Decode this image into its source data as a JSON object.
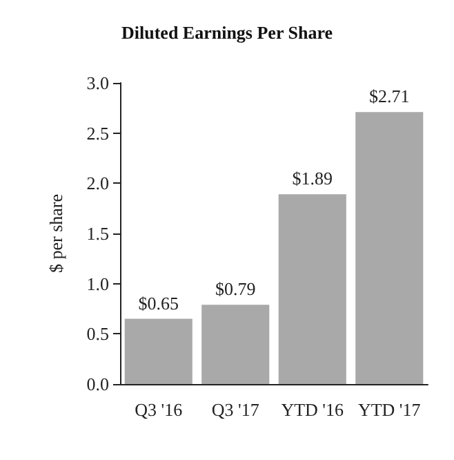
{
  "chart_data": {
    "type": "bar",
    "title": "Diluted Earnings Per Share",
    "ylabel": "$ per share",
    "categories": [
      "Q3 '16",
      "Q3 '17",
      "YTD '16",
      "YTD '17"
    ],
    "values": [
      0.65,
      0.79,
      1.89,
      2.71
    ],
    "value_labels": [
      "$0.65",
      "$0.79",
      "$1.89",
      "$2.71"
    ],
    "color": "#a9a9a9",
    "ylim": [
      0,
      3
    ],
    "yticks": [
      {
        "value": 0,
        "label": "0.0"
      },
      {
        "value": 0.5,
        "label": "0.5"
      },
      {
        "value": 1,
        "label": "1.0"
      },
      {
        "value": 1.5,
        "label": "1.5"
      },
      {
        "value": 2,
        "label": "2.0"
      },
      {
        "value": 2.5,
        "label": "2.5"
      },
      {
        "value": 3,
        "label": "3.0"
      }
    ],
    "grid": false
  }
}
